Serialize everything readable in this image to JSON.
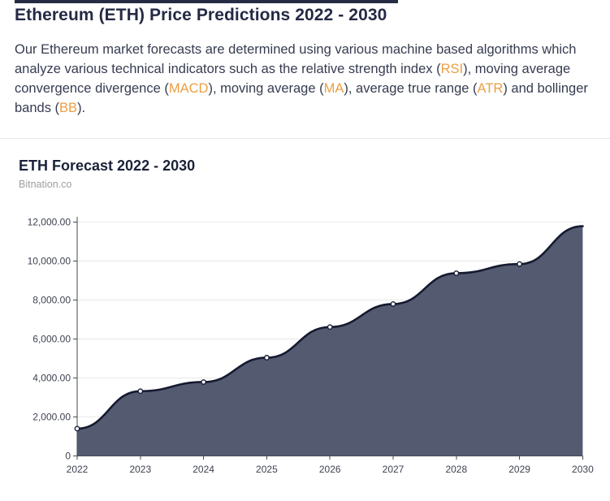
{
  "page": {
    "title": "Ethereum (ETH) Price Predictions 2022 - 2030"
  },
  "intro": {
    "highlight_color": "#ec9f42",
    "segments": [
      {
        "text": "Our Ethereum market forecasts are determined using various machine based algorithms which analyze various technical indicators such as the relative strength index (",
        "highlight": false
      },
      {
        "text": "RSI",
        "highlight": true
      },
      {
        "text": "), moving average convergence divergence (",
        "highlight": false
      },
      {
        "text": "MACD",
        "highlight": true
      },
      {
        "text": "), moving average (",
        "highlight": false
      },
      {
        "text": "MA",
        "highlight": true
      },
      {
        "text": "), average true range (",
        "highlight": false
      },
      {
        "text": "ATR",
        "highlight": true
      },
      {
        "text": ") and bollinger bands (",
        "highlight": false
      },
      {
        "text": "BB",
        "highlight": true
      },
      {
        "text": ").",
        "highlight": false
      }
    ]
  },
  "chart": {
    "title": "ETH Forecast 2022 - 2030",
    "source": "Bitnation.co"
  },
  "chart_data": {
    "type": "area",
    "title": "ETH Forecast 2022 - 2030",
    "source": "Bitnation.co",
    "categories": [
      "2022",
      "2023",
      "2024",
      "2025",
      "2026",
      "2027",
      "2028",
      "2029",
      "2030"
    ],
    "values": [
      1400,
      3320,
      3790,
      5040,
      6610,
      7790,
      9370,
      9840,
      11780
    ],
    "ylim": [
      0,
      12000
    ],
    "ytick_step": 2000,
    "ytick_labels": [
      "0",
      "2,000.00",
      "4,000.00",
      "6,000.00",
      "8,000.00",
      "10,000.00",
      "12,000.00"
    ],
    "grid": true,
    "legend": false,
    "colors": {
      "area_fill": "#545a70",
      "line": "#151a30",
      "marker_fill": "#ffffff",
      "grid": "#e8e8e8",
      "axis": "#47494f",
      "tick_label": "#3d4250"
    }
  }
}
